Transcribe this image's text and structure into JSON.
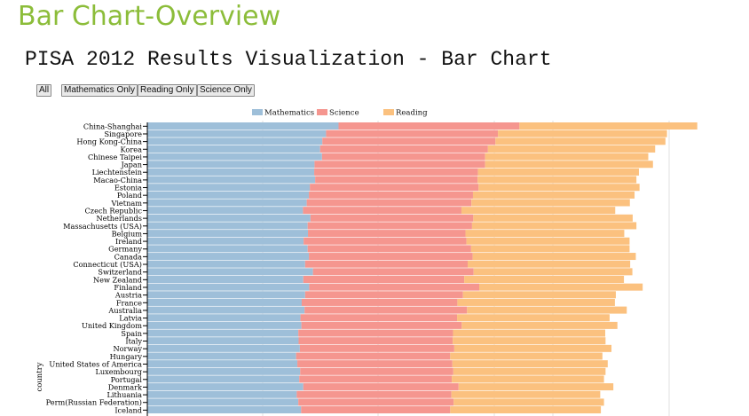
{
  "slide": {
    "title": "Bar Chart-Overview"
  },
  "controls": {
    "all_label": "All",
    "math_label": "Mathematics Only",
    "reading_label": "Reading Only",
    "science_label": "Science Only"
  },
  "chart_data": {
    "type": "bar",
    "orientation": "horizontal",
    "stacked": true,
    "title": "PISA 2012 Results Visualization - Bar Chart",
    "ylabel": "country",
    "legend_position": "top",
    "grid": true,
    "categories": [
      "China-Shanghai",
      "Singapore",
      "Hong Kong-China",
      "Korea",
      "Chinese Taipei",
      "Japan",
      "Liechtenstein",
      "Macao-China",
      "Estonia",
      "Poland",
      "Vietnam",
      "Czech Republic",
      "Netherlands",
      "Massachusetts (USA)",
      "Belgium",
      "Ireland",
      "Germany",
      "Canada",
      "Connecticut (USA)",
      "Switzerland",
      "New Zealand",
      "Finland",
      "Austria",
      "France",
      "Australia",
      "Latvia",
      "United Kingdom",
      "Spain",
      "Italy",
      "Norway",
      "Hungary",
      "United States of America",
      "Luxembourg",
      "Portugal",
      "Denmark",
      "Lithuania",
      "Perm(Russian Federation)",
      "Iceland"
    ],
    "series": [
      {
        "name": "Mathematics",
        "color": "#9ebfd9",
        "values": [
          613,
          573,
          561,
          554,
          560,
          536,
          535,
          538,
          521,
          518,
          511,
          499,
          523,
          514,
          515,
          501,
          514,
          518,
          506,
          531,
          500,
          519,
          506,
          495,
          504,
          491,
          494,
          484,
          485,
          489,
          477,
          481,
          490,
          487,
          500,
          479,
          484,
          493
        ]
      },
      {
        "name": "Science",
        "color": "#f5968f",
        "values": [
          580,
          551,
          555,
          538,
          523,
          547,
          525,
          521,
          541,
          526,
          528,
          508,
          522,
          527,
          505,
          522,
          524,
          525,
          521,
          515,
          516,
          545,
          506,
          499,
          521,
          502,
          514,
          496,
          494,
          495,
          494,
          497,
          491,
          489,
          498,
          496,
          498,
          478
        ]
      },
      {
        "name": "Reading",
        "color": "#fbc17f",
        "values": [
          570,
          542,
          545,
          536,
          523,
          538,
          516,
          509,
          516,
          518,
          508,
          493,
          511,
          527,
          509,
          523,
          508,
          523,
          521,
          509,
          512,
          524,
          490,
          505,
          512,
          489,
          499,
          488,
          490,
          504,
          488,
          498,
          488,
          488,
          496,
          477,
          482,
          483
        ]
      }
    ]
  }
}
